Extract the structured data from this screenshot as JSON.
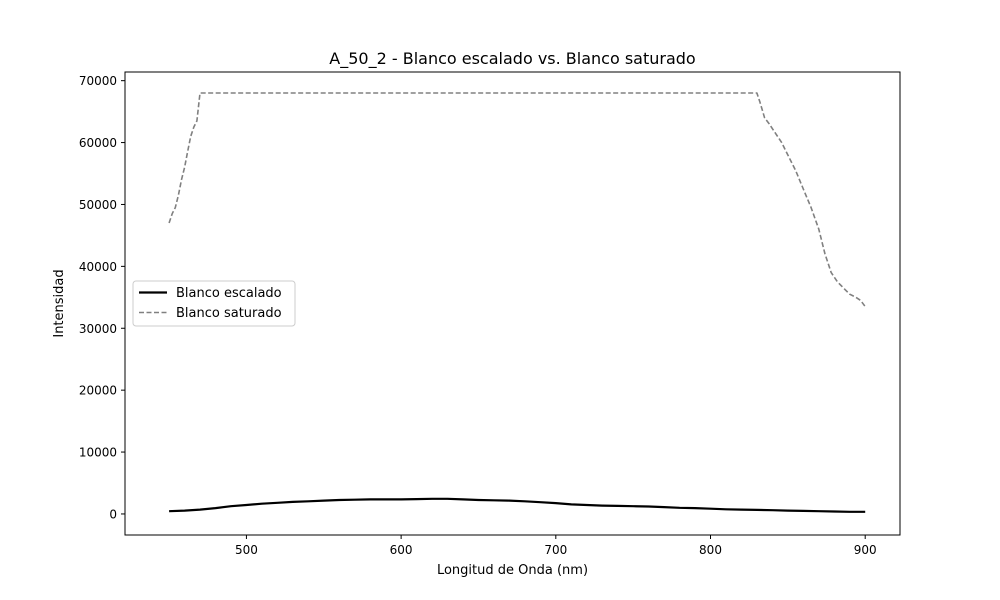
{
  "chart_data": {
    "type": "line",
    "title": "A_50_2 - Blanco escalado vs. Blanco saturado",
    "xlabel": "Longitud de Onda (nm)",
    "ylabel": "Intensidad",
    "xlim": [
      421.5,
      922.5
    ],
    "ylim": [
      -3400,
      71400
    ],
    "xticks": [
      500,
      600,
      700,
      800,
      900
    ],
    "yticks": [
      0,
      10000,
      20000,
      30000,
      40000,
      50000,
      60000,
      70000
    ],
    "grid": false,
    "legend": {
      "position": "center-left",
      "entries": [
        "Blanco escalado",
        "Blanco saturado"
      ]
    },
    "series": [
      {
        "name": "Blanco escalado",
        "color": "#000000",
        "style": "solid",
        "x": [
          450,
          460,
          470,
          480,
          490,
          500,
          510,
          520,
          530,
          540,
          550,
          560,
          570,
          580,
          590,
          600,
          610,
          620,
          630,
          640,
          650,
          660,
          670,
          680,
          690,
          700,
          710,
          720,
          730,
          740,
          750,
          760,
          770,
          780,
          790,
          800,
          810,
          820,
          830,
          840,
          850,
          860,
          870,
          880,
          890,
          900
        ],
        "y": [
          450,
          550,
          700,
          950,
          1250,
          1450,
          1650,
          1800,
          1950,
          2050,
          2150,
          2250,
          2300,
          2350,
          2350,
          2350,
          2400,
          2450,
          2450,
          2350,
          2250,
          2200,
          2150,
          2050,
          1900,
          1750,
          1550,
          1450,
          1350,
          1300,
          1250,
          1200,
          1100,
          1000,
          950,
          850,
          750,
          700,
          650,
          600,
          550,
          500,
          450,
          400,
          350,
          350
        ]
      },
      {
        "name": "Blanco saturado",
        "color": "#808080",
        "style": "dashed",
        "x": [
          450,
          452,
          454,
          456,
          458,
          460,
          462,
          464,
          466,
          468,
          470,
          480,
          500,
          550,
          600,
          650,
          700,
          750,
          800,
          820,
          830,
          832,
          835,
          838,
          842,
          846,
          850,
          855,
          860,
          865,
          870,
          874,
          878,
          882,
          886,
          890,
          894,
          897,
          900
        ],
        "y": [
          47000,
          48500,
          49500,
          51500,
          54000,
          56000,
          58500,
          61000,
          62500,
          63500,
          68000,
          68000,
          68000,
          68000,
          68000,
          68000,
          68000,
          68000,
          68000,
          68000,
          68000,
          66500,
          64000,
          63000,
          61500,
          60000,
          58000,
          55500,
          52500,
          49500,
          46000,
          42000,
          39000,
          37500,
          36500,
          35500,
          35000,
          34500,
          33500
        ]
      }
    ]
  }
}
